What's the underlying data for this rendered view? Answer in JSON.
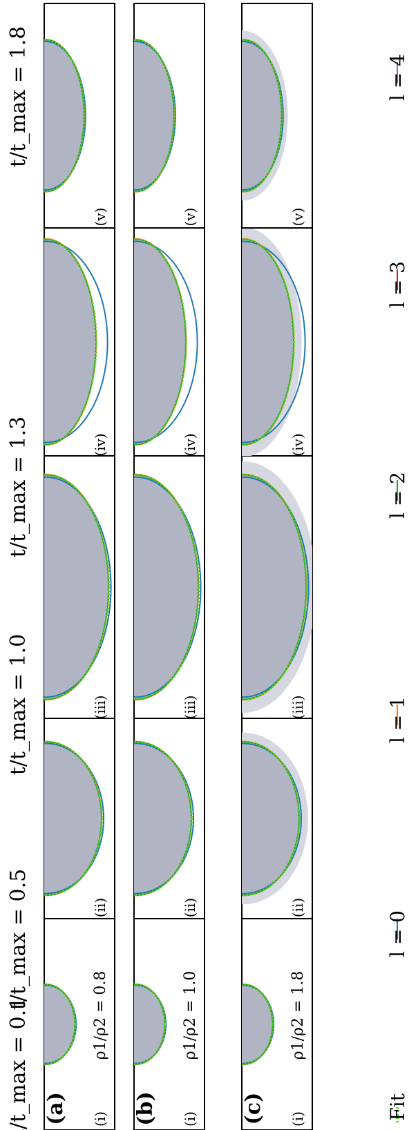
{
  "figure": {
    "time_labels": [
      "t/t_max = 0.1",
      "t/t_max = 0.5",
      "t/t_max = 1.0",
      "t/t_max = 1.3",
      "t/t_max = 1.8"
    ],
    "row_labels": [
      "(a)",
      "(b)",
      "(c)"
    ],
    "density_ratios": [
      "ρ1/ρ2 = 0.8",
      "ρ1/ρ2 = 1.0",
      "ρ1/ρ2 = 1.8"
    ],
    "panel_numerals": [
      "(i)",
      "(ii)",
      "(iii)",
      "(iv)",
      "(v)"
    ],
    "legend": [
      {
        "label": "Fit",
        "color": "#44dd22",
        "style": "dotted"
      },
      {
        "label": "l = 0",
        "color": "#1f77b4",
        "style": "solid"
      },
      {
        "label": "l = 1",
        "color": "#ff7f0e",
        "style": "solid"
      },
      {
        "label": "l = 2",
        "color": "#2ca02c",
        "style": "solid"
      },
      {
        "label": "l = 3",
        "color": "#d62728",
        "style": "solid"
      },
      {
        "label": "l = 4",
        "color": "#9467bd",
        "style": "solid"
      }
    ],
    "colors": {
      "bubble": "#b1b4c2",
      "plume": "#d6d8e1",
      "frame": "#000000"
    }
  }
}
